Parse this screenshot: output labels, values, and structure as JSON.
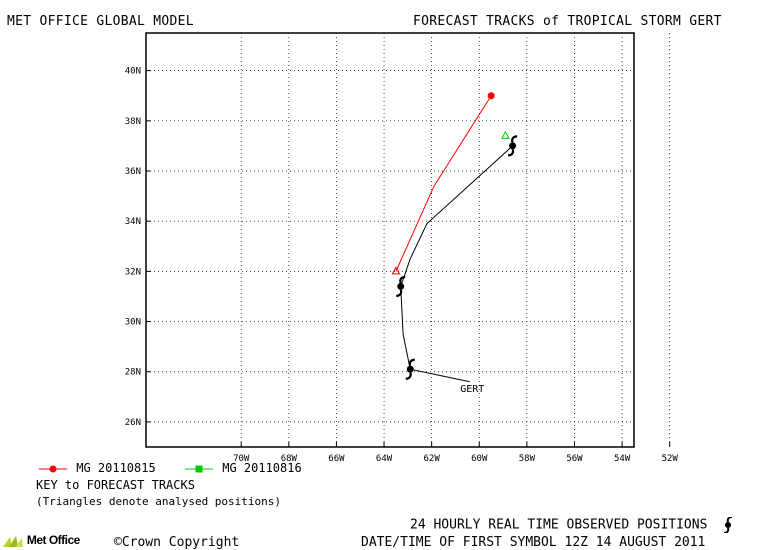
{
  "header": {
    "model": "MET OFFICE GLOBAL MODEL",
    "title": "FORECAST TRACKS of TROPICAL STORM GERT"
  },
  "map": {
    "lon_range": [
      -74,
      -53.5
    ],
    "lat_range": [
      25,
      41.5
    ],
    "lon_ticks": [
      {
        "value": -70,
        "label": "70W"
      },
      {
        "value": -68,
        "label": "68W"
      },
      {
        "value": -66,
        "label": "66W"
      },
      {
        "value": -64,
        "label": "64W"
      },
      {
        "value": -62,
        "label": "62W"
      },
      {
        "value": -60,
        "label": "60W"
      },
      {
        "value": -58,
        "label": "58W"
      },
      {
        "value": -56,
        "label": "56W"
      },
      {
        "value": -54,
        "label": "54W"
      },
      {
        "value": -52,
        "label": "52W"
      }
    ],
    "lat_ticks": [
      {
        "value": 26,
        "label": "26N"
      },
      {
        "value": 28,
        "label": "28N"
      },
      {
        "value": 30,
        "label": "30N"
      },
      {
        "value": 32,
        "label": "32N"
      },
      {
        "value": 34,
        "label": "34N"
      },
      {
        "value": 36,
        "label": "36N"
      },
      {
        "value": 38,
        "label": "38N"
      },
      {
        "value": 40,
        "label": "40N"
      }
    ],
    "grid": true,
    "storm_name": "GERT",
    "storm_name_position": {
      "lon": -60.8,
      "lat": 27.2
    },
    "observed_track": [
      {
        "lon": -60.4,
        "lat": 27.6
      },
      {
        "lon": -62.9,
        "lat": 28.1
      },
      {
        "lon": -63.2,
        "lat": 29.5
      },
      {
        "lon": -63.3,
        "lat": 31.4
      },
      {
        "lon": -62.9,
        "lat": 32.5
      },
      {
        "lon": -62.2,
        "lat": 33.9
      },
      {
        "lon": -58.6,
        "lat": 37.0
      }
    ],
    "observed_symbols": [
      {
        "lon": -62.9,
        "lat": 28.1
      },
      {
        "lon": -63.3,
        "lat": 31.4
      },
      {
        "lon": -58.6,
        "lat": 37.0
      }
    ],
    "forecast_tracks": [
      {
        "name": "MG 20110815",
        "color": "#ff0000",
        "points": [
          {
            "lon": -63.5,
            "lat": 32.0
          },
          {
            "lon": -61.9,
            "lat": 35.4
          },
          {
            "lon": -59.5,
            "lat": 39.0
          }
        ],
        "start_marker": "triangle",
        "end_marker": "circle"
      },
      {
        "name": "MG 20110816",
        "color": "#00cc00",
        "points": [
          {
            "lon": -58.9,
            "lat": 37.4
          }
        ],
        "start_marker": "triangle",
        "end_marker": "square"
      }
    ]
  },
  "legend": {
    "items": [
      {
        "label": "MG 20110815",
        "color": "#ff0000",
        "marker": "circle"
      },
      {
        "label": "MG 20110816",
        "color": "#00cc00",
        "marker": "square"
      }
    ],
    "key_title": "KEY to FORECAST TRACKS",
    "key_note": "(Triangles denote analysed positions)"
  },
  "footer": {
    "observed_label": "24 HOURLY REAL TIME OBSERVED POSITIONS",
    "datetime_label": "DATE/TIME OF FIRST SYMBOL 12Z 14 AUGUST 2011",
    "copyright": "©Crown Copyright",
    "logo_text": "Met Office",
    "cyclone_icon": "hurricane-symbol-icon"
  }
}
